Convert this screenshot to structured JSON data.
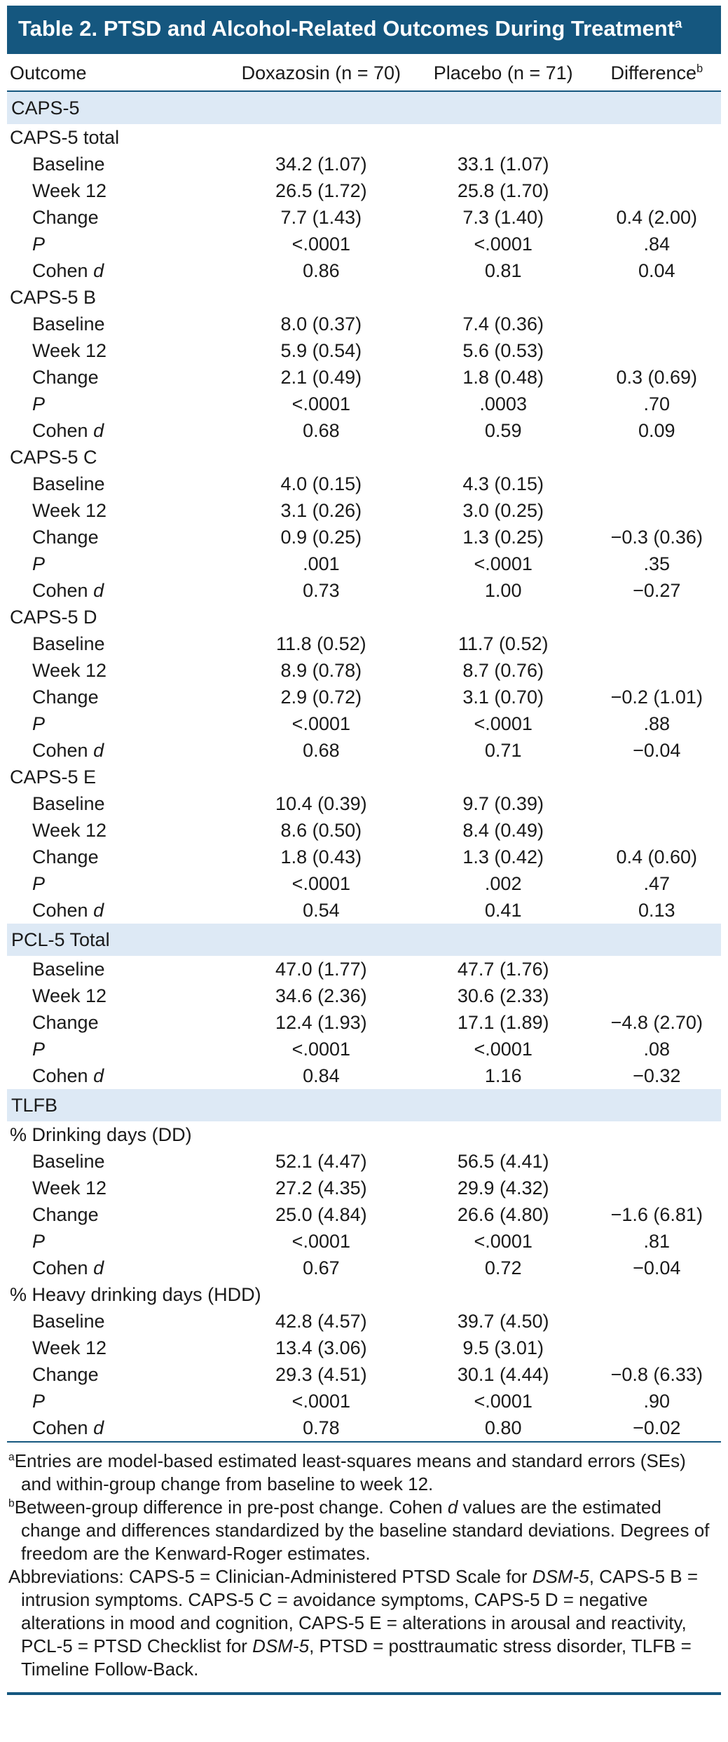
{
  "colors": {
    "banner_background": "#15577f",
    "banner_text": "#ffffff",
    "section_band": "#dde9f5",
    "rule": "#15577f",
    "body_text": "#1a1a1a"
  },
  "table": {
    "title": "Table 2. PTSD and Alcohol-Related Outcomes During Treatment",
    "title_sup": "a",
    "header": {
      "outcome": "Outcome",
      "doxazosin": "Doxazosin (n = 70)",
      "placebo": "Placebo (n = 71)",
      "difference": "Difference",
      "difference_sup": "b"
    },
    "sections": [
      {
        "header": "CAPS-5",
        "groups": [
          {
            "label": "CAPS-5 total",
            "rows": [
              {
                "label": "Baseline",
                "dox": "34.2 (1.07)",
                "placebo": "33.1 (1.07)",
                "diff": ""
              },
              {
                "label": "Week 12",
                "dox": "26.5 (1.72)",
                "placebo": "25.8 (1.70)",
                "diff": ""
              },
              {
                "label": "Change",
                "dox": "7.7 (1.43)",
                "placebo": "7.3 (1.40)",
                "diff": "0.4 (2.00)"
              },
              {
                "label": "P",
                "em": "P",
                "dox": "<.0001",
                "placebo": "<.0001",
                "diff": ".84"
              },
              {
                "label": "Cohen d",
                "em": "d",
                "dox": "0.86",
                "placebo": "0.81",
                "diff": "0.04"
              }
            ]
          },
          {
            "label": "CAPS-5 B",
            "rows": [
              {
                "label": "Baseline",
                "dox": "8.0 (0.37)",
                "placebo": "7.4 (0.36)",
                "diff": ""
              },
              {
                "label": "Week 12",
                "dox": "5.9 (0.54)",
                "placebo": "5.6 (0.53)",
                "diff": ""
              },
              {
                "label": "Change",
                "dox": "2.1 (0.49)",
                "placebo": "1.8 (0.48)",
                "diff": "0.3 (0.69)"
              },
              {
                "label": "P",
                "em": "P",
                "dox": "<.0001",
                "placebo": ".0003",
                "diff": ".70"
              },
              {
                "label": "Cohen d",
                "em": "d",
                "dox": "0.68",
                "placebo": "0.59",
                "diff": "0.09"
              }
            ]
          },
          {
            "label": "CAPS-5 C",
            "rows": [
              {
                "label": "Baseline",
                "dox": "4.0 (0.15)",
                "placebo": "4.3 (0.15)",
                "diff": ""
              },
              {
                "label": "Week 12",
                "dox": "3.1 (0.26)",
                "placebo": "3.0 (0.25)",
                "diff": ""
              },
              {
                "label": "Change",
                "dox": "0.9 (0.25)",
                "placebo": "1.3 (0.25)",
                "diff": "−0.3 (0.36)"
              },
              {
                "label": "P",
                "em": "P",
                "dox": ".001",
                "placebo": "<.0001",
                "diff": ".35"
              },
              {
                "label": "Cohen d",
                "em": "d",
                "dox": "0.73",
                "placebo": "1.00",
                "diff": "−0.27"
              }
            ]
          },
          {
            "label": "CAPS-5 D",
            "rows": [
              {
                "label": "Baseline",
                "dox": "11.8 (0.52)",
                "placebo": "11.7 (0.52)",
                "diff": ""
              },
              {
                "label": "Week 12",
                "dox": "8.9 (0.78)",
                "placebo": "8.7 (0.76)",
                "diff": ""
              },
              {
                "label": "Change",
                "dox": "2.9 (0.72)",
                "placebo": "3.1 (0.70)",
                "diff": "−0.2 (1.01)"
              },
              {
                "label": "P",
                "em": "P",
                "dox": "<.0001",
                "placebo": "<.0001",
                "diff": ".88"
              },
              {
                "label": "Cohen d",
                "em": "d",
                "dox": "0.68",
                "placebo": "0.71",
                "diff": "−0.04"
              }
            ]
          },
          {
            "label": "CAPS-5 E",
            "rows": [
              {
                "label": "Baseline",
                "dox": "10.4 (0.39)",
                "placebo": "9.7 (0.39)",
                "diff": ""
              },
              {
                "label": "Week 12",
                "dox": "8.6 (0.50)",
                "placebo": "8.4 (0.49)",
                "diff": ""
              },
              {
                "label": "Change",
                "dox": "1.8 (0.43)",
                "placebo": "1.3 (0.42)",
                "diff": "0.4 (0.60)"
              },
              {
                "label": "P",
                "em": "P",
                "dox": "<.0001",
                "placebo": ".002",
                "diff": ".47"
              },
              {
                "label": "Cohen d",
                "em": "d",
                "dox": "0.54",
                "placebo": "0.41",
                "diff": "0.13"
              }
            ]
          }
        ]
      },
      {
        "header": "PCL-5 Total",
        "groups": [
          {
            "label": null,
            "rows": [
              {
                "label": "Baseline",
                "dox": "47.0 (1.77)",
                "placebo": "47.7 (1.76)",
                "diff": ""
              },
              {
                "label": "Week 12",
                "dox": "34.6 (2.36)",
                "placebo": "30.6 (2.33)",
                "diff": ""
              },
              {
                "label": "Change",
                "dox": "12.4 (1.93)",
                "placebo": "17.1 (1.89)",
                "diff": "−4.8 (2.70)"
              },
              {
                "label": "P",
                "em": "P",
                "dox": "<.0001",
                "placebo": "<.0001",
                "diff": ".08"
              },
              {
                "label": "Cohen d",
                "em": "d",
                "dox": "0.84",
                "placebo": "1.16",
                "diff": "−0.32"
              }
            ]
          }
        ]
      },
      {
        "header": "TLFB",
        "groups": [
          {
            "label": "% Drinking days (DD)",
            "rows": [
              {
                "label": "Baseline",
                "dox": "52.1 (4.47)",
                "placebo": "56.5 (4.41)",
                "diff": ""
              },
              {
                "label": "Week 12",
                "dox": "27.2 (4.35)",
                "placebo": "29.9 (4.32)",
                "diff": ""
              },
              {
                "label": "Change",
                "dox": "25.0 (4.84)",
                "placebo": "26.6 (4.80)",
                "diff": "−1.6 (6.81)"
              },
              {
                "label": "P",
                "em": "P",
                "dox": "<.0001",
                "placebo": "<.0001",
                "diff": ".81"
              },
              {
                "label": "Cohen d",
                "em": "d",
                "dox": "0.67",
                "placebo": "0.72",
                "diff": "−0.04"
              }
            ]
          },
          {
            "label": "% Heavy drinking days (HDD)",
            "rows": [
              {
                "label": "Baseline",
                "dox": "42.8 (4.57)",
                "placebo": "39.7 (4.50)",
                "diff": ""
              },
              {
                "label": "Week 12",
                "dox": "13.4 (3.06)",
                "placebo": "9.5 (3.01)",
                "diff": ""
              },
              {
                "label": "Change",
                "dox": "29.3 (4.51)",
                "placebo": "30.1 (4.44)",
                "diff": "−0.8 (6.33)"
              },
              {
                "label": "P",
                "em": "P",
                "dox": "<.0001",
                "placebo": "<.0001",
                "diff": ".90"
              },
              {
                "label": "Cohen d",
                "em": "d",
                "dox": "0.78",
                "placebo": "0.80",
                "diff": "−0.02"
              }
            ]
          }
        ]
      }
    ],
    "footnotes": [
      {
        "sup": "a",
        "segments": [
          {
            "t": "Entries are model-based estimated least-squares means and standard errors (SEs) and within-group change from baseline to week 12.",
            "i": false
          }
        ]
      },
      {
        "sup": "b",
        "segments": [
          {
            "t": "Between-group difference in pre-post change. Cohen ",
            "i": false
          },
          {
            "t": "d",
            "i": true
          },
          {
            "t": " values are the estimated change and differences standardized by the baseline standard deviations. Degrees of freedom are the Kenward-Roger estimates.",
            "i": false
          }
        ]
      },
      {
        "sup": "",
        "segments": [
          {
            "t": "Abbreviations: CAPS-5 = Clinician-Administered PTSD Scale for ",
            "i": false
          },
          {
            "t": "DSM-5",
            "i": true
          },
          {
            "t": ", CAPS-5 B = intrusion symptoms. CAPS-5 C = avoidance symptoms, CAPS-5 D = negative alterations in mood and cognition, CAPS-5 E = alterations in arousal and reactivity, PCL-5 = PTSD Checklist for ",
            "i": false
          },
          {
            "t": "DSM-5",
            "i": true
          },
          {
            "t": ", PTSD = posttraumatic stress disorder, TLFB = Timeline Follow-Back.",
            "i": false
          }
        ]
      }
    ]
  }
}
